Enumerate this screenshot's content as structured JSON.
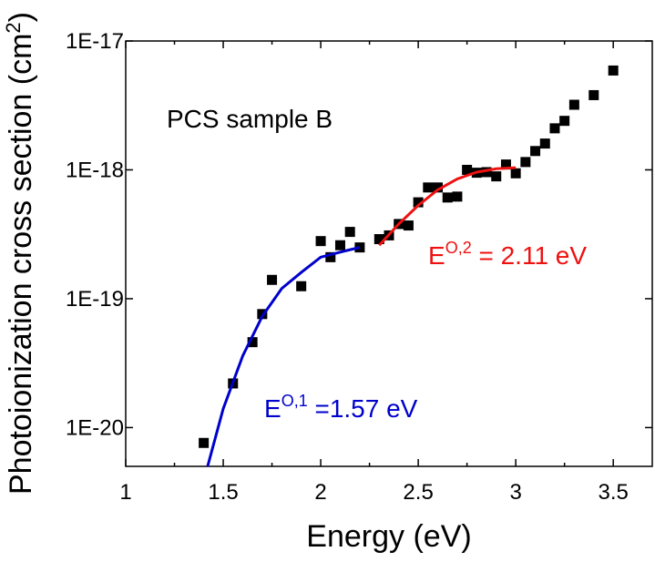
{
  "chart_data": {
    "type": "scatter",
    "xlabel": "Energy (eV)",
    "ylabel": {
      "text": "Photoionization cross section (cm",
      "sup": "2",
      "end": ")"
    },
    "xlim": [
      1,
      3.7
    ],
    "xticks": [
      1,
      1.5,
      2,
      2.5,
      3,
      3.5
    ],
    "ylim": [
      5e-21,
      1e-17
    ],
    "yticks": [
      {
        "value": 1e-20,
        "label": "1E-20"
      },
      {
        "value": 1e-19,
        "label": "1E-19"
      },
      {
        "value": 1e-18,
        "label": "1E-18"
      },
      {
        "value": 1e-17,
        "label": "1E-17"
      }
    ],
    "yscale": "log",
    "series": [
      {
        "type": "scatter",
        "color": "#000000",
        "x": [
          1.4,
          1.55,
          1.65,
          1.7,
          1.75,
          1.9,
          2.0,
          2.05,
          2.1,
          2.15,
          2.2,
          2.3,
          2.35,
          2.4,
          2.45,
          2.5,
          2.55,
          2.6,
          2.65,
          2.7,
          2.75,
          2.8,
          2.85,
          2.9,
          2.95,
          3.0,
          3.05,
          3.1,
          3.15,
          3.2,
          3.25,
          3.3,
          3.4,
          3.5
        ],
        "values": [
          7.6e-21,
          2.2e-20,
          4.6e-20,
          7.6e-20,
          1.4e-19,
          1.25e-19,
          2.8e-19,
          2.1e-19,
          2.6e-19,
          3.3e-19,
          2.5e-19,
          2.9e-19,
          3.1e-19,
          3.8e-19,
          3.7e-19,
          5.6e-19,
          7.3e-19,
          7.3e-19,
          6.1e-19,
          6.2e-19,
          1e-18,
          9.5e-19,
          9.6e-19,
          8.9e-19,
          1.1e-18,
          9.4e-19,
          1.15e-18,
          1.4e-18,
          1.6e-18,
          2.1e-18,
          2.4e-18,
          3.2e-18,
          3.8e-18,
          5.9e-18
        ]
      },
      {
        "type": "line",
        "color": "#0000cc",
        "x": [
          1.42,
          1.5,
          1.6,
          1.7,
          1.8,
          1.9,
          2.0,
          2.1,
          2.2
        ],
        "values": [
          5e-21,
          1.4e-20,
          3.6e-20,
          7.3e-20,
          1.2e-19,
          1.6e-19,
          2.1e-19,
          2.3e-19,
          2.5e-19
        ]
      },
      {
        "type": "line",
        "color": "#ee1111",
        "x": [
          2.3,
          2.4,
          2.5,
          2.6,
          2.7,
          2.8,
          2.9,
          3.0
        ],
        "values": [
          2.6e-19,
          3.8e-19,
          5.3e-19,
          7e-19,
          8.5e-19,
          9.6e-19,
          1.02e-18,
          1.04e-18
        ]
      }
    ],
    "annotations": [
      {
        "text": "PCS sample B",
        "color": "#000000"
      },
      {
        "base": "E",
        "sup": "O,2",
        "text": " = 2.11 eV",
        "color": "#ee1111"
      },
      {
        "base": "E",
        "sup": "O,1",
        "text": " =1.57 eV",
        "color": "#0000cc"
      }
    ]
  }
}
